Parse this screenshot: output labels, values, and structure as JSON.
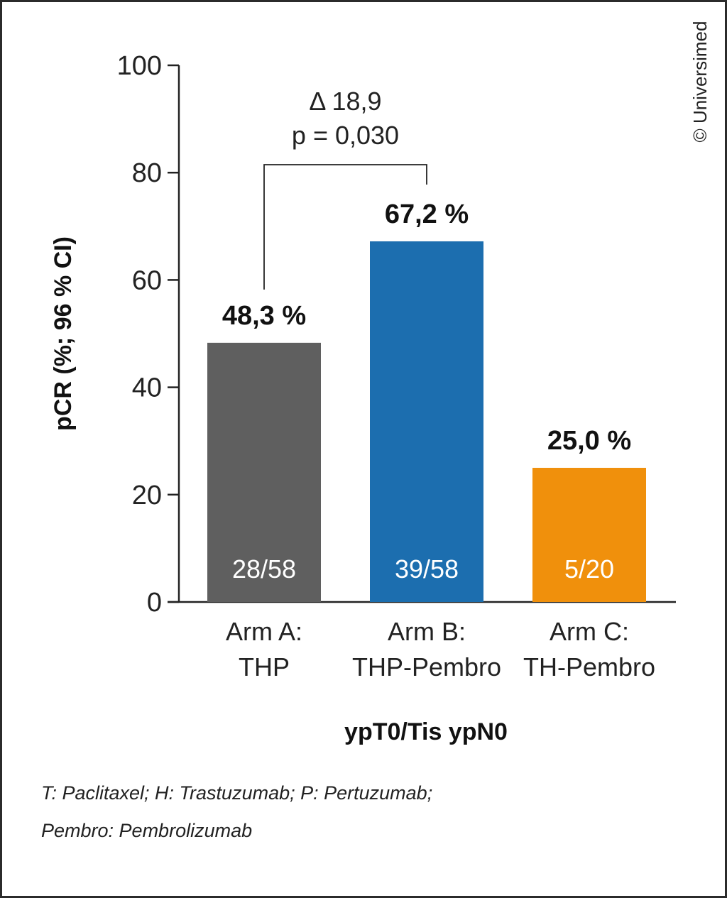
{
  "copyright": "© Universimed",
  "footnote": {
    "line1": "T: Paclitaxel; H: Trastuzumab; P: Pertuzumab;",
    "line2": "Pembro: Pembrolizumab"
  },
  "chart_data": {
    "type": "bar",
    "ylabel": "pCR (%; 96 % CI)",
    "xlabel": "ypT0/Tis ypN0",
    "ylim": [
      0,
      100
    ],
    "yticks": [
      "0",
      "20",
      "40",
      "60",
      "80",
      "100"
    ],
    "yticks_values": [
      0,
      20,
      40,
      60,
      80,
      100
    ],
    "categories": [
      {
        "line1": "Arm A:",
        "line2": "THP"
      },
      {
        "line1": "Arm B:",
        "line2": "THP-Pembro"
      },
      {
        "line1": "Arm C:",
        "line2": "TH-Pembro"
      }
    ],
    "values": [
      48.3,
      67.2,
      25.0
    ],
    "value_labels": [
      "48,3 %",
      "67,2 %",
      "25,0 %"
    ],
    "counts": [
      "28/58",
      "39/58",
      "5/20"
    ],
    "colors": [
      "#5f5f5f",
      "#1c6eaf",
      "#f0900c"
    ],
    "comparison": {
      "from": 0,
      "to": 1,
      "line1": "Δ 18,9",
      "line2": "p = 0,030"
    },
    "grid": false,
    "legend": "none"
  }
}
